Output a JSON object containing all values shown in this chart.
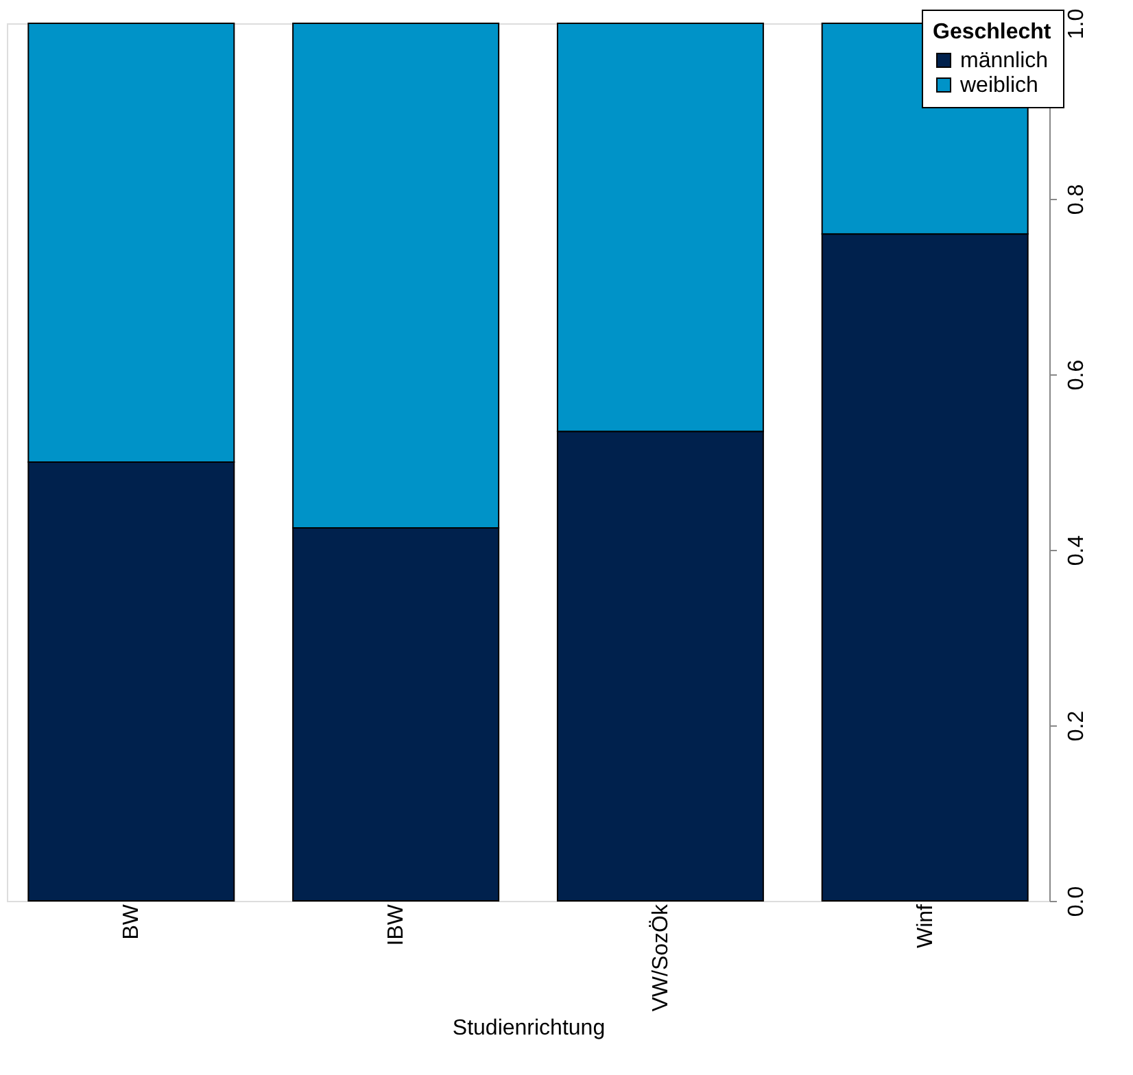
{
  "chart_data": {
    "type": "bar",
    "stacked": true,
    "xlabel": "Studienrichtung",
    "legend_title": "Geschlecht",
    "legend": "top right",
    "categories": [
      "BW",
      "IBW",
      "VW/SozÖk",
      "Winf"
    ],
    "series": [
      {
        "name": "männlich",
        "color": "#00214d",
        "values": [
          0.5,
          0.425,
          0.535,
          0.76
        ]
      },
      {
        "name": "weiblich",
        "color": "#0093c8",
        "values": [
          0.5,
          0.575,
          0.465,
          0.24
        ]
      }
    ],
    "ylim": [
      0,
      1
    ],
    "yticks": [
      {
        "value": 0,
        "label": "0.0"
      },
      0.2,
      0.4,
      0.6,
      0.8,
      {
        "value": 1,
        "label": "1.0"
      }
    ],
    "grid": false
  }
}
